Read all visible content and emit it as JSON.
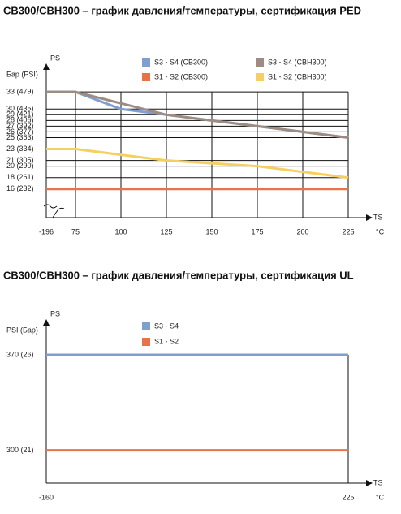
{
  "chart_data": [
    {
      "type": "line",
      "title": "CB300/CBH300 – график давления/температуры, сертификация PED",
      "y_axis_label": "Бар (PSI)",
      "y_axis_name": "PS",
      "x_axis_name": "TS",
      "x_unit": "°C",
      "x": [
        -196,
        75,
        100,
        125,
        150,
        175,
        200,
        225
      ],
      "xlim": [
        -196,
        225
      ],
      "xticks": [
        -196,
        75,
        100,
        125,
        150,
        175,
        200,
        225
      ],
      "ylim": [
        11,
        37
      ],
      "yticks": [
        {
          "value": 33,
          "label": "33  (479)"
        },
        {
          "value": 30,
          "label": "30  (435)"
        },
        {
          "value": 29,
          "label": "29  (421)"
        },
        {
          "value": 28,
          "label": "28  (406)"
        },
        {
          "value": 27,
          "label": "27  (392)"
        },
        {
          "value": 26,
          "label": "26  (377)"
        },
        {
          "value": 25,
          "label": "25  (363)"
        },
        {
          "value": 23,
          "label": "23  (334)"
        },
        {
          "value": 21,
          "label": "21  (305)"
        },
        {
          "value": 20,
          "label": "20  (290)"
        },
        {
          "value": 18,
          "label": "18  (261)"
        },
        {
          "value": 16,
          "label": "16  (232)"
        }
      ],
      "grid": true,
      "x_break": true,
      "series": [
        {
          "name": "S3 - S4   (CB300)",
          "color": "#7f9fcf",
          "values": [
            33,
            33,
            30,
            29,
            28,
            27,
            26,
            25
          ]
        },
        {
          "name": "S3 - S4   (CBH300)",
          "color": "#9e8b82",
          "values": [
            33,
            33,
            31,
            29,
            28,
            27,
            26,
            25
          ]
        },
        {
          "name": "S1 - S2   (CB300)",
          "color": "#e8734a",
          "values": [
            16,
            16,
            16,
            16,
            16,
            16,
            16,
            16
          ]
        },
        {
          "name": "S1 - S2   (CBH300)",
          "color": "#f5cf5f",
          "values": [
            23,
            23,
            22,
            21,
            20.5,
            20,
            19,
            18
          ]
        }
      ]
    },
    {
      "type": "line",
      "title": "CB300/CBH300 – график давления/температуры, сертификация UL",
      "y_axis_label": "PSI (Бар)",
      "y_axis_name": "PS",
      "x_axis_name": "TS",
      "x_unit": "°C",
      "x": [
        -160,
        225
      ],
      "xlim": [
        -160,
        225
      ],
      "xticks": [
        -160,
        225
      ],
      "ylim": [
        276,
        392
      ],
      "yticks": [
        {
          "value": 370,
          "label": "370 (26)"
        },
        {
          "value": 300,
          "label": "300 (21)"
        }
      ],
      "grid": false,
      "x_break": false,
      "series": [
        {
          "name": "S3 - S4",
          "color": "#7f9fcf",
          "values": [
            370,
            370
          ]
        },
        {
          "name": "S1 - S2",
          "color": "#e8734a",
          "values": [
            300,
            300
          ]
        }
      ]
    }
  ]
}
